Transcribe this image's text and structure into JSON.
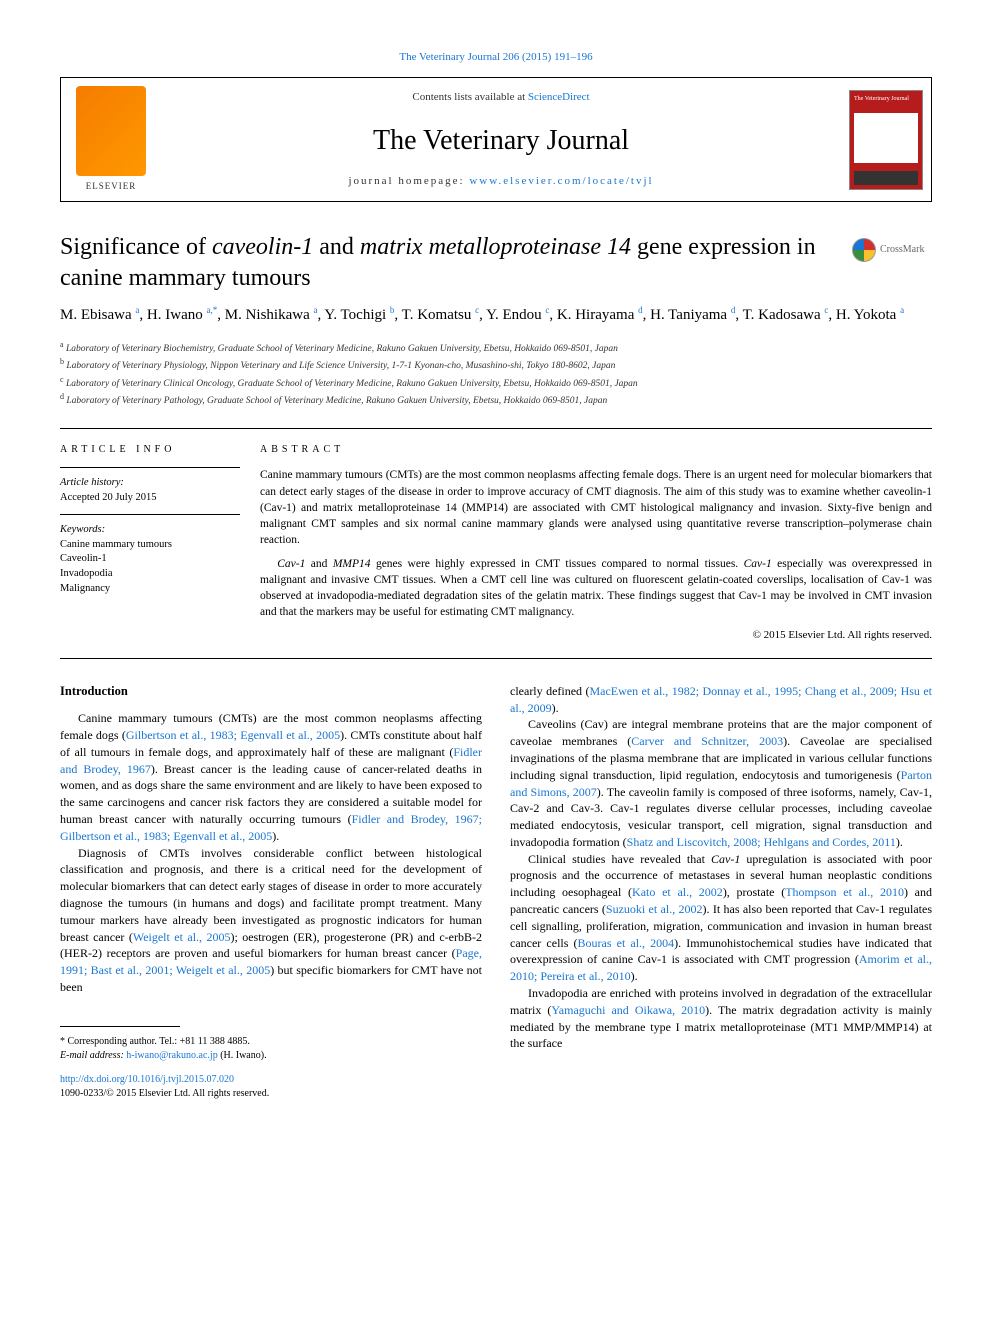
{
  "top_citation": "The Veterinary Journal 206 (2015) 191–196",
  "header": {
    "contents_prefix": "Contents lists available at ",
    "contents_link": "ScienceDirect",
    "journal_name": "The Veterinary Journal",
    "homepage_prefix": "journal homepage: ",
    "homepage_link": "www.elsevier.com/locate/tvjl",
    "elsevier_label": "ELSEVIER",
    "cover_text": "The Veterinary Journal"
  },
  "crossmark_label": "CrossMark",
  "title_plain_1": "Significance of ",
  "title_italic_1": "caveolin-1",
  "title_plain_2": " and ",
  "title_italic_2": "matrix metalloproteinase 14",
  "title_plain_3": " gene expression in canine mammary tumours",
  "authors_html": "M. Ebisawa <sup>a</sup>, H. Iwano <sup>a,*</sup>, M. Nishikawa <sup>a</sup>, Y. Tochigi <sup>b</sup>, T. Komatsu <sup>c</sup>, Y. Endou <sup>c</sup>, K. Hirayama <sup>d</sup>, H. Taniyama <sup>d</sup>, T. Kadosawa <sup>c</sup>, H. Yokota <sup>a</sup>",
  "affiliations": [
    {
      "sup": "a",
      "text": "Laboratory of Veterinary Biochemistry, Graduate School of Veterinary Medicine, Rakuno Gakuen University, Ebetsu, Hokkaido 069-8501, Japan"
    },
    {
      "sup": "b",
      "text": "Laboratory of Veterinary Physiology, Nippon Veterinary and Life Science University, 1-7-1 Kyonan-cho, Musashino-shi, Tokyo 180-8602, Japan"
    },
    {
      "sup": "c",
      "text": "Laboratory of Veterinary Clinical Oncology, Graduate School of Veterinary Medicine, Rakuno Gakuen University, Ebetsu, Hokkaido 069-8501, Japan"
    },
    {
      "sup": "d",
      "text": "Laboratory of Veterinary Pathology, Graduate School of Veterinary Medicine, Rakuno Gakuen University, Ebetsu, Hokkaido 069-8501, Japan"
    }
  ],
  "article_info": {
    "heading": "ARTICLE INFO",
    "history_label": "Article history:",
    "history_value": "Accepted 20 July 2015",
    "keywords_label": "Keywords:",
    "keywords": [
      "Canine mammary tumours",
      "Caveolin-1",
      "Invadopodia",
      "Malignancy"
    ]
  },
  "abstract": {
    "heading": "ABSTRACT",
    "para1": "Canine mammary tumours (CMTs) are the most common neoplasms affecting female dogs. There is an urgent need for molecular biomarkers that can detect early stages of the disease in order to improve accuracy of CMT diagnosis. The aim of this study was to examine whether caveolin-1 (Cav-1) and matrix metalloproteinase 14 (MMP14) are associated with CMT histological malignancy and invasion. Sixty-five benign and malignant CMT samples and six normal canine mammary glands were analysed using quantitative reverse transcription–polymerase chain reaction.",
    "para2_lead_italic": "Cav-1",
    "para2_mid": " and ",
    "para2_italic2": "MMP14",
    "para2_rest": " genes were highly expressed in CMT tissues compared to normal tissues. ",
    "para2_italic3": "Cav-1",
    "para2_tail": " especially was overexpressed in malignant and invasive CMT tissues. When a CMT cell line was cultured on fluorescent gelatin-coated coverslips, localisation of Cav-1 was observed at invadopodia-mediated degradation sites of the gelatin matrix. These findings suggest that Cav-1 may be involved in CMT invasion and that the markers may be useful for estimating CMT malignancy.",
    "copyright": "© 2015 Elsevier Ltd. All rights reserved."
  },
  "body": {
    "intro_heading": "Introduction",
    "left": {
      "p1_a": "Canine mammary tumours (CMTs) are the most common neoplasms affecting female dogs (",
      "p1_link1": "Gilbertson et al., 1983; Egenvall et al., 2005",
      "p1_b": "). CMTs constitute about half of all tumours in female dogs, and approximately half of these are malignant (",
      "p1_link2": "Fidler and Brodey, 1967",
      "p1_c": "). Breast cancer is the leading cause of cancer-related deaths in women, and as dogs share the same environment and are likely to have been exposed to the same carcinogens and cancer risk factors they are considered a suitable model for human breast cancer with naturally occurring tumours (",
      "p1_link3": "Fidler and Brodey, 1967; Gilbertson et al., 1983; Egenvall et al., 2005",
      "p1_d": ").",
      "p2_a": "Diagnosis of CMTs involves considerable conflict between histological classification and prognosis, and there is a critical need for the development of molecular biomarkers that can detect early stages of disease in order to more accurately diagnose the tumours (in humans and dogs) and facilitate prompt treatment. Many tumour markers have already been investigated as prognostic indicators for human breast cancer (",
      "p2_link1": "Weigelt et al., 2005",
      "p2_b": "); oestrogen (ER), progesterone (PR) and c-erbB-2 (HER-2) receptors are proven and useful biomarkers for human breast cancer (",
      "p2_link2": "Page, 1991; Bast et al., 2001; Weigelt et al., 2005",
      "p2_c": ") but specific biomarkers for CMT have not been"
    },
    "right": {
      "p1_a": "clearly defined (",
      "p1_link1": "MacEwen et al., 1982; Donnay et al., 1995; Chang et al., 2009; Hsu et al., 2009",
      "p1_b": ").",
      "p2_a": "Caveolins (Cav) are integral membrane proteins that are the major component of caveolae membranes (",
      "p2_link1": "Carver and Schnitzer, 2003",
      "p2_b": "). Caveolae are specialised invaginations of the plasma membrane that are implicated in various cellular functions including signal transduction, lipid regulation, endocytosis and tumorigenesis (",
      "p2_link2": "Parton and Simons, 2007",
      "p2_c": "). The caveolin family is composed of three isoforms, namely, Cav-1, Cav-2 and Cav-3. Cav-1 regulates diverse cellular processes, including caveolae mediated endocytosis, vesicular transport, cell migration, signal transduction and invadopodia formation (",
      "p2_link3": "Shatz and Liscovitch, 2008; Hehlgans and Cordes, 2011",
      "p2_d": ").",
      "p3_a": "Clinical studies have revealed that ",
      "p3_italic": "Cav-1",
      "p3_b": " upregulation is associated with poor prognosis and the occurrence of metastases in several human neoplastic conditions including oesophageal (",
      "p3_link1": "Kato et al., 2002",
      "p3_c": "), prostate (",
      "p3_link2": "Thompson et al., 2010",
      "p3_d": ") and pancreatic cancers (",
      "p3_link3": "Suzuoki et al., 2002",
      "p3_e": "). It has also been reported that Cav-1 regulates cell signalling, proliferation, migration, communication and invasion in human breast cancer cells (",
      "p3_link4": "Bouras et al., 2004",
      "p3_f": "). Immunohistochemical studies have indicated that overexpression of canine Cav-1 is associated with CMT progression (",
      "p3_link5": "Amorim et al., 2010; Pereira et al., 2010",
      "p3_g": ").",
      "p4_a": "Invadopodia are enriched with proteins involved in degradation of the extracellular matrix (",
      "p4_link1": "Yamaguchi and Oikawa, 2010",
      "p4_b": "). The matrix degradation activity is mainly mediated by the membrane type I matrix metalloproteinase (MT1 MMP/MMP14) at the surface"
    }
  },
  "footer": {
    "corr_label": "* Corresponding author. Tel.: +81 11 388 4885.",
    "email_label": "E-mail address:",
    "email_value": "h-iwano@rakuno.ac.jp",
    "email_name": "(H. Iwano).",
    "doi_link": "http://dx.doi.org/10.1016/j.tvjl.2015.07.020",
    "issn_line": "1090-0233/© 2015 Elsevier Ltd. All rights reserved."
  },
  "colors": {
    "link": "#1976d2",
    "elsevier": "#f57c00",
    "cover": "#b71c1c"
  }
}
